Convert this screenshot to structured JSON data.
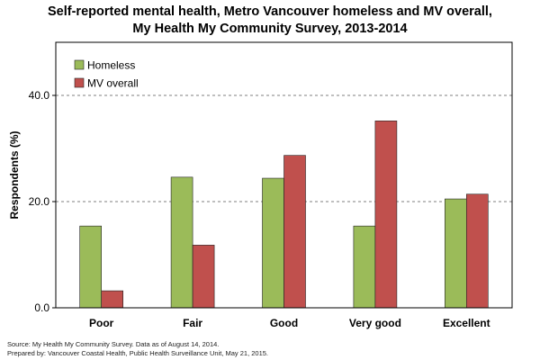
{
  "chart_data": {
    "type": "bar",
    "title_line1": "Self-reported mental health, Metro Vancouver homeless and MV overall,",
    "title_line2": "My Health My Community Survey, 2013-2014",
    "ylabel": "Respondents (%)",
    "xlabel": "",
    "categories": [
      "Poor",
      "Fair",
      "Good",
      "Very good",
      "Excellent"
    ],
    "series": [
      {
        "name": "Homeless",
        "color": "#9BBB59",
        "values": [
          15.4,
          24.6,
          24.4,
          15.4,
          20.5
        ]
      },
      {
        "name": "MV overall",
        "color": "#C0504D",
        "values": [
          3.2,
          11.8,
          28.7,
          35.2,
          21.4
        ]
      }
    ],
    "ylim": [
      0,
      50
    ],
    "yticks": [
      0,
      20,
      40
    ],
    "ytick_labels": [
      "0.0",
      "20.0",
      "40.0"
    ],
    "grid": "dashed horizontal",
    "legend_position": "top-left"
  },
  "footer": {
    "source": "Source: My Health My Community Survey. Data as of August 14, 2014.",
    "prepared": "Prepared by: Vancouver Coastal Health, Public Health Surveillance Unit, May 21, 2015."
  }
}
